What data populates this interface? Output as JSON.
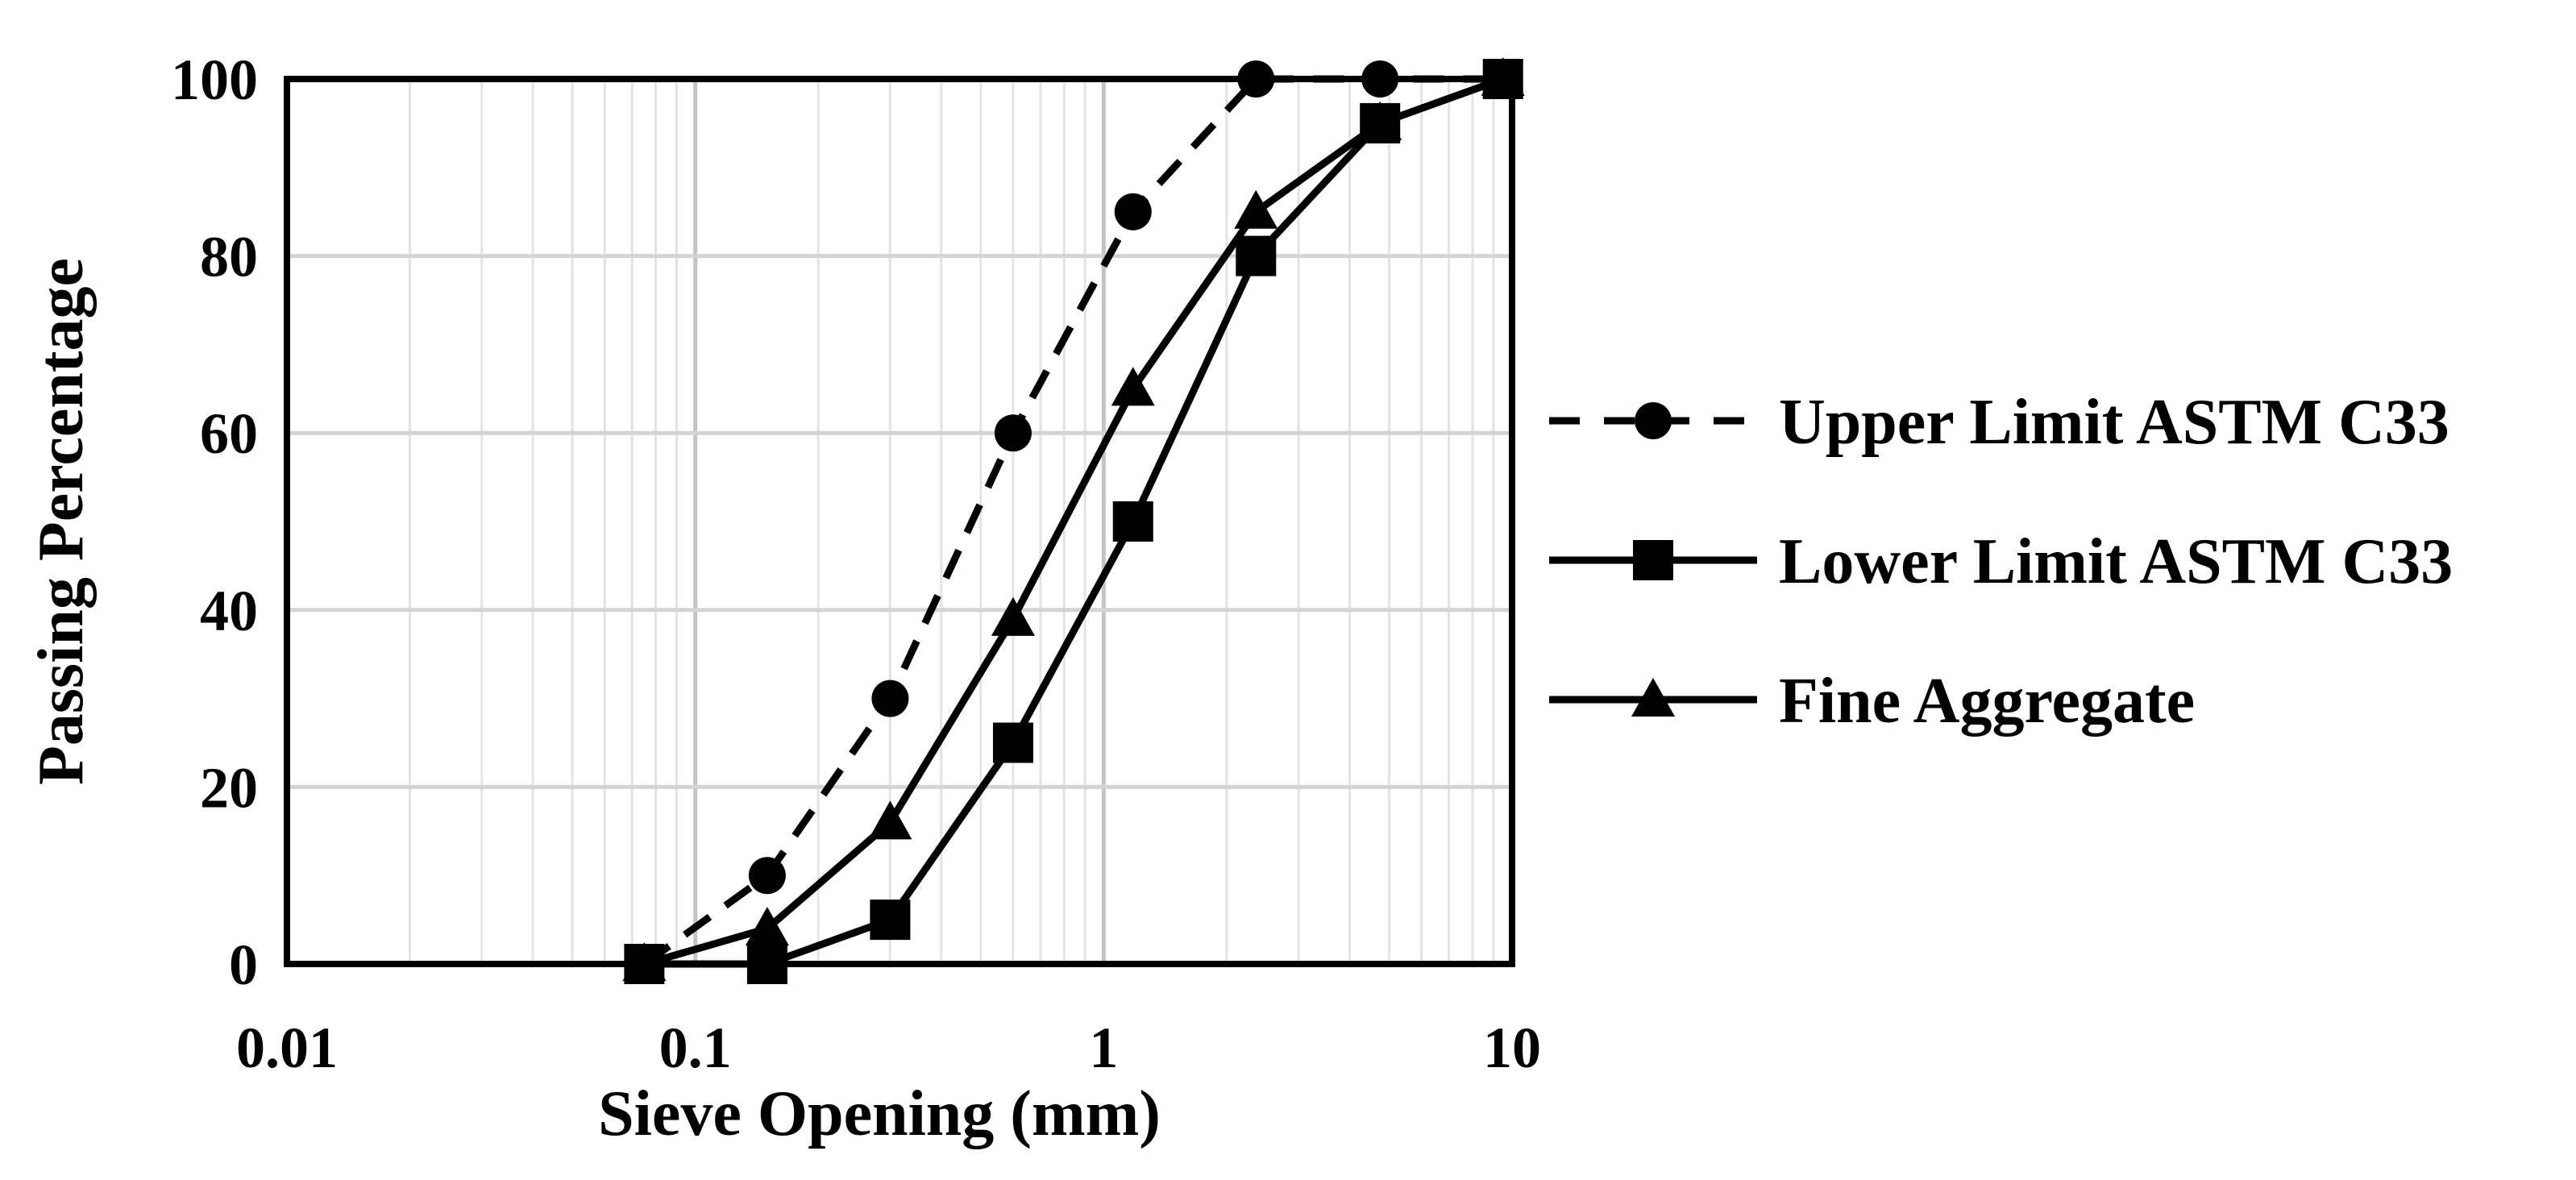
{
  "chart_data": {
    "type": "scatter",
    "title": "",
    "xlabel": "Sieve Opening (mm)",
    "ylabel": "Passing Percentage",
    "x_scale": "log",
    "xlim": [
      0.01,
      10
    ],
    "ylim": [
      0,
      100
    ],
    "x_ticks": [
      "0.01",
      "0.1",
      "1",
      "10"
    ],
    "y_ticks": [
      "0",
      "20",
      "40",
      "60",
      "80",
      "100"
    ],
    "grid": true,
    "legend_position": "right",
    "series": [
      {
        "name": "Upper Limit ASTM C33",
        "line_style": "dashed",
        "marker": "circle",
        "color": "#000000",
        "points": [
          {
            "x": 0.075,
            "y": 0
          },
          {
            "x": 0.15,
            "y": 10
          },
          {
            "x": 0.3,
            "y": 30
          },
          {
            "x": 0.6,
            "y": 60
          },
          {
            "x": 1.18,
            "y": 85
          },
          {
            "x": 2.36,
            "y": 100
          },
          {
            "x": 4.75,
            "y": 100
          },
          {
            "x": 9.5,
            "y": 100
          }
        ]
      },
      {
        "name": "Lower Limit ASTM C33",
        "line_style": "solid",
        "marker": "square",
        "color": "#000000",
        "points": [
          {
            "x": 0.075,
            "y": 0
          },
          {
            "x": 0.15,
            "y": 0
          },
          {
            "x": 0.3,
            "y": 5
          },
          {
            "x": 0.6,
            "y": 25
          },
          {
            "x": 1.18,
            "y": 50
          },
          {
            "x": 2.36,
            "y": 80
          },
          {
            "x": 4.75,
            "y": 95
          },
          {
            "x": 9.5,
            "y": 100
          }
        ]
      },
      {
        "name": "Fine Aggregate",
        "line_style": "solid",
        "marker": "triangle",
        "color": "#000000",
        "points": [
          {
            "x": 0.075,
            "y": 0
          },
          {
            "x": 0.15,
            "y": 4
          },
          {
            "x": 0.3,
            "y": 16
          },
          {
            "x": 0.6,
            "y": 39
          },
          {
            "x": 1.18,
            "y": 65
          },
          {
            "x": 2.36,
            "y": 85
          },
          {
            "x": 4.75,
            "y": 95
          },
          {
            "x": 9.5,
            "y": 100
          }
        ]
      }
    ]
  }
}
